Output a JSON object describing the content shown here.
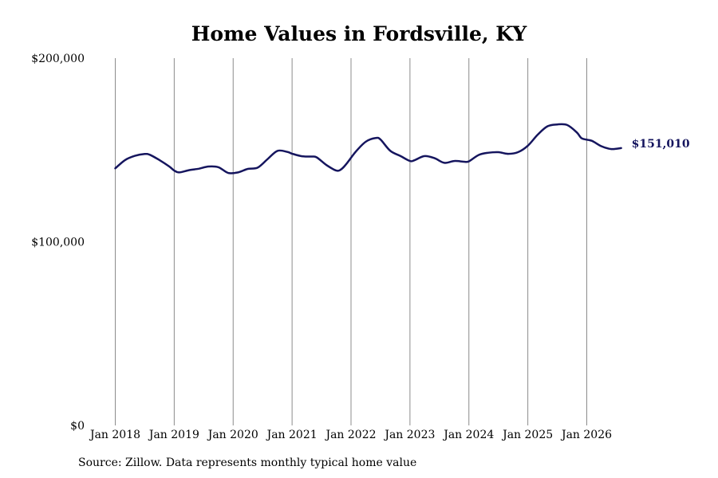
{
  "chart_data": {
    "type": "line",
    "title": "Home Values in Fordsville, KY",
    "xlabel": "",
    "ylabel": "",
    "ylim": [
      0,
      200000
    ],
    "y_ticks": [
      0,
      100000,
      200000
    ],
    "y_tick_labels": [
      "$0",
      "$100,000",
      "$200,000"
    ],
    "x_ticks": [
      "2018-01",
      "2019-01",
      "2020-01",
      "2021-01",
      "2022-01",
      "2023-01",
      "2024-01",
      "2025-01",
      "2026-01"
    ],
    "x_tick_labels": [
      "Jan 2018",
      "Jan 2019",
      "Jan 2020",
      "Jan 2021",
      "Jan 2022",
      "Jan 2023",
      "Jan 2024",
      "Jan 2025",
      "Jan 2026"
    ],
    "grid": "vertical",
    "end_label": "$151,010",
    "colors": {
      "line": "#15155e",
      "grid": "#8c8c8c"
    },
    "series": [
      {
        "x": [
          "2018-01",
          "2018-03",
          "2018-05",
          "2018-07",
          "2018-08",
          "2018-10",
          "2018-12",
          "2019-01",
          "2019-02",
          "2019-04",
          "2019-06",
          "2019-08",
          "2019-10",
          "2019-12",
          "2020-02",
          "2020-04",
          "2020-06",
          "2020-08",
          "2020-10",
          "2020-12",
          "2021-01",
          "2021-03",
          "2021-05",
          "2021-06",
          "2021-08",
          "2021-10",
          "2021-11",
          "2021-12",
          "2022-02",
          "2022-04",
          "2022-06",
          "2022-07",
          "2022-09",
          "2022-11",
          "2023-01",
          "2023-02",
          "2023-04",
          "2023-06",
          "2023-08",
          "2023-10",
          "2023-12",
          "2024-01",
          "2024-03",
          "2024-05",
          "2024-07",
          "2024-09",
          "2024-11",
          "2025-01",
          "2025-03",
          "2025-05",
          "2025-07",
          "2025-09",
          "2025-11",
          "2025-12",
          "2026-02",
          "2026-04",
          "2026-06",
          "2026-08"
        ],
        "values": [
          140000,
          144500,
          146800,
          147800,
          147400,
          144500,
          141000,
          138800,
          137800,
          139000,
          139800,
          141000,
          140600,
          137500,
          137800,
          139700,
          140400,
          145000,
          149500,
          149000,
          148000,
          146600,
          146400,
          146000,
          141800,
          138800,
          139500,
          142200,
          149200,
          154500,
          156500,
          155700,
          149500,
          146800,
          144000,
          144500,
          146700,
          145500,
          143000,
          144000,
          143600,
          143800,
          147300,
          148500,
          148800,
          147900,
          148800,
          152300,
          158300,
          162900,
          163900,
          163600,
          159500,
          156300,
          155000,
          152000,
          150500,
          151010
        ]
      }
    ]
  },
  "source_note": "Source: Zillow. Data represents monthly typical home value"
}
